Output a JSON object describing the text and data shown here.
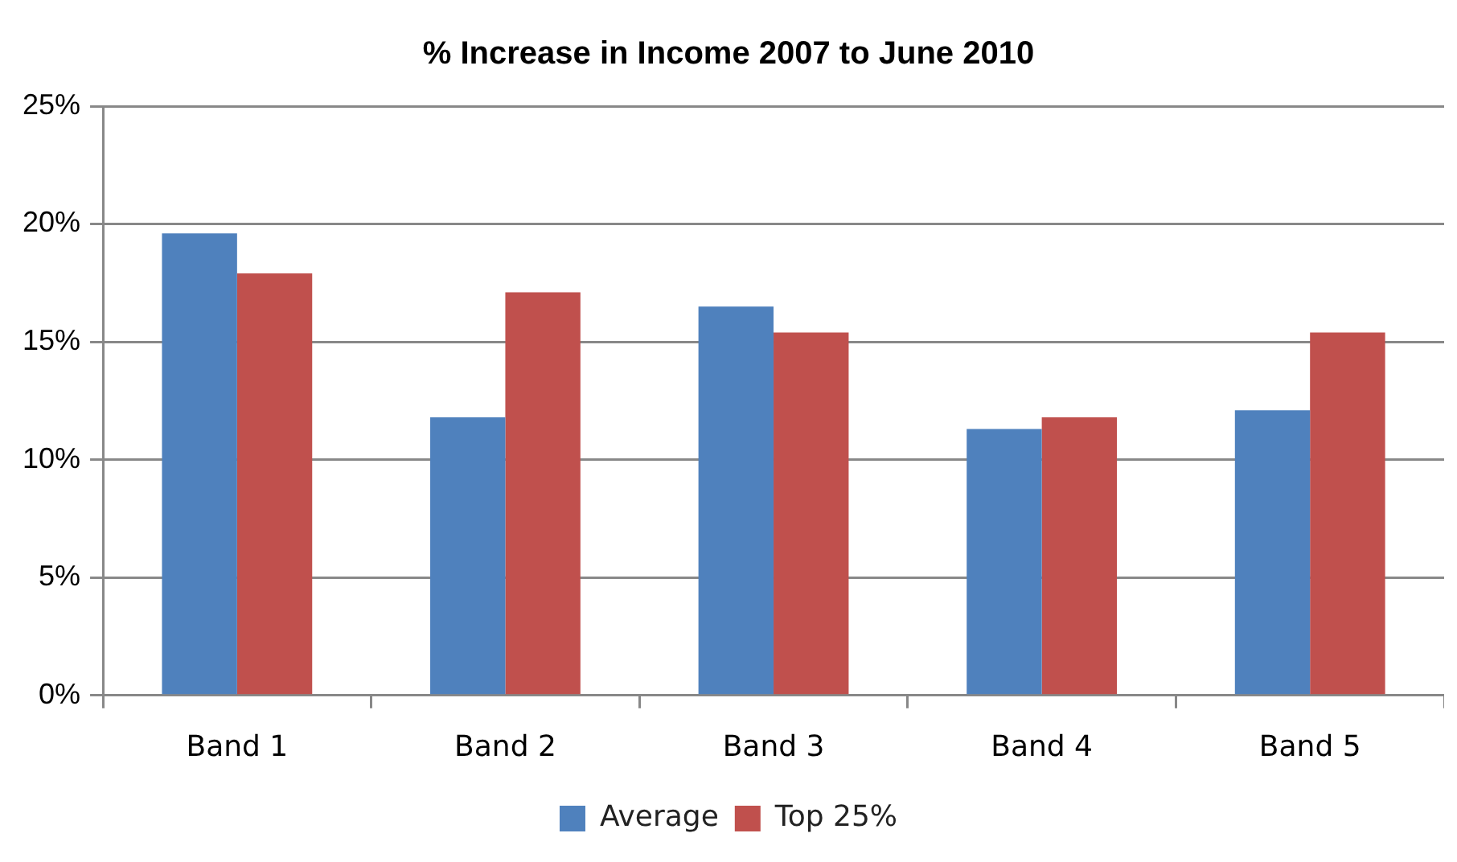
{
  "chart_data": {
    "type": "bar",
    "title": "% Increase in Income 2007 to June 2010",
    "categories": [
      "Band 1",
      "Band 2",
      "Band 3",
      "Band 4",
      "Band 5"
    ],
    "series": [
      {
        "name": "Average",
        "color": "#4f81bd",
        "values": [
          19.6,
          11.8,
          16.5,
          11.3,
          12.1
        ]
      },
      {
        "name": "Top 25%",
        "color": "#c0504d",
        "values": [
          17.9,
          17.1,
          15.4,
          11.8,
          15.4
        ]
      }
    ],
    "ylim": [
      0,
      25
    ],
    "yticks": [
      {
        "value": 0,
        "label": "0%"
      },
      {
        "value": 5,
        "label": "5%"
      },
      {
        "value": 10,
        "label": "10%"
      },
      {
        "value": 15,
        "label": "15%"
      },
      {
        "value": 20,
        "label": "20%"
      },
      {
        "value": 25,
        "label": "25%"
      }
    ],
    "grid": "y",
    "legend": "bottom"
  }
}
